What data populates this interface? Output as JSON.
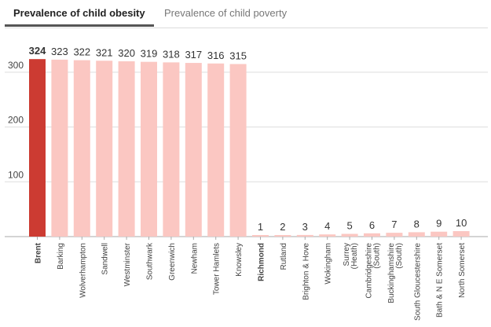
{
  "tabs": [
    {
      "label": "Prevalence of child obesity",
      "active": true
    },
    {
      "label": "Prevalence of child poverty",
      "active": false
    }
  ],
  "colors": {
    "highlight": "#cc3b32",
    "bar": "#fbc7c2",
    "axis": "#aaaaaa",
    "grid": "#dddddd",
    "text": "#444444"
  },
  "chart_data": {
    "type": "bar",
    "title": "",
    "xlabel": "",
    "ylabel": "",
    "ylim": [
      0,
      330
    ],
    "yticks": [
      100,
      200,
      300
    ],
    "grid": true,
    "categories": [
      "Brent",
      "Barking",
      "Wolverhampton",
      "Sandwell",
      "Westminster",
      "Southwark",
      "Greenwich",
      "Newham",
      "Tower Hamlets",
      "Knowsley",
      "Richmond",
      "Rutland",
      "Brighton & Hove",
      "Wokingham",
      "Surrey (Heath)",
      "Cambridgeshire (South)",
      "Buckinghamshire (South)",
      "South Gloucestershire",
      "Bath & N E Somerset",
      "North Somerset"
    ],
    "values": [
      324,
      323,
      322,
      321,
      320,
      319,
      318,
      317,
      316,
      315,
      1,
      2,
      3,
      4,
      5,
      6,
      7,
      8,
      9,
      10
    ],
    "value_labels": [
      "324",
      "323",
      "322",
      "321",
      "320",
      "319",
      "318",
      "317",
      "316",
      "315",
      "1",
      "2",
      "3",
      "4",
      "5",
      "6",
      "7",
      "8",
      "9",
      "10"
    ],
    "highlight_indices": [
      0
    ],
    "bold_labels": [
      0,
      10
    ]
  }
}
